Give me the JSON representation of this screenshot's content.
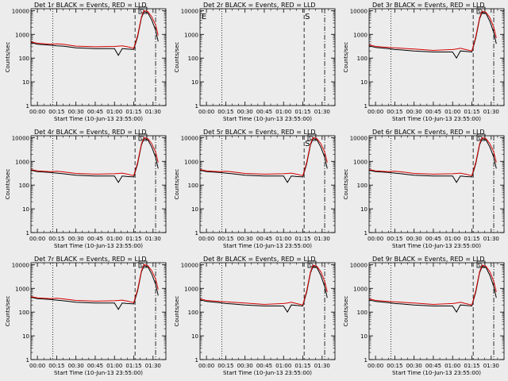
{
  "colors": {
    "background": "#ececec",
    "events": "#000000",
    "lld": "#d40000",
    "frame": "#000000"
  },
  "common": {
    "ylabel": "Counts/sec",
    "xlabel": "Start Time (10-Jun-13 23:55:00)",
    "x_ticks": [
      "00:00",
      "00:15",
      "00:30",
      "00:45",
      "01:00",
      "01:15",
      "01:30"
    ],
    "y_ticks": [
      "1",
      "10",
      "100",
      "1000",
      "10000"
    ],
    "y_scale": "log",
    "x_range_minutes": [
      -5,
      100
    ],
    "y_range": [
      1,
      12000
    ],
    "legend_text": "BLACK = Events, RED = LLD",
    "marker_label_E": "E",
    "marker_label_S": "S",
    "marker_label_D": "D"
  },
  "chart_data": [
    {
      "id": "1r",
      "title": "Det 1r BLACK = Events, RED = LLD",
      "type": "line",
      "x_minutes": [
        -5,
        0,
        10,
        15,
        20,
        30,
        45,
        60,
        63,
        66,
        70,
        75,
        78,
        81,
        83,
        86,
        89,
        92,
        94
      ],
      "series": [
        {
          "name": "Events",
          "values": [
            450,
            380,
            350,
            330,
            320,
            270,
            250,
            250,
            130,
            250,
            240,
            230,
            800,
            5000,
            9000,
            8000,
            4000,
            1500,
            500
          ]
        },
        {
          "name": "LLD",
          "values": [
            480,
            420,
            380,
            400,
            380,
            320,
            300,
            310,
            320,
            330,
            300,
            260,
            900,
            5500,
            10000,
            9000,
            5500,
            2500,
            900
          ]
        }
      ],
      "flags": {
        "E": false,
        "S": false,
        "D": true,
        "gap": false
      }
    },
    {
      "id": "2r",
      "title": "Det 2r BLACK = Events, RED = LLD",
      "type": "line",
      "x_minutes": [],
      "series": [],
      "flags": {
        "E": true,
        "S": true,
        "D": false,
        "gap": true
      }
    },
    {
      "id": "3r",
      "title": "Det 3r BLACK = Events, RED = LLD",
      "type": "line",
      "x_minutes": [
        -5,
        0,
        10,
        15,
        20,
        30,
        45,
        60,
        63,
        66,
        70,
        75,
        78,
        81,
        83,
        86,
        89,
        92,
        94
      ],
      "series": [
        {
          "name": "Events",
          "values": [
            330,
            280,
            250,
            230,
            220,
            200,
            180,
            180,
            100,
            200,
            190,
            180,
            700,
            4500,
            8500,
            7500,
            3500,
            1200,
            400
          ]
        },
        {
          "name": "LLD",
          "values": [
            360,
            310,
            280,
            270,
            260,
            240,
            210,
            230,
            240,
            260,
            230,
            200,
            800,
            5000,
            9500,
            8500,
            5000,
            2000,
            700
          ]
        }
      ],
      "flags": {
        "E": false,
        "S": false,
        "D": true,
        "gap": false
      }
    },
    {
      "id": "4r",
      "title": "Det 4r BLACK = Events, RED = LLD",
      "type": "line",
      "x_minutes": [
        -5,
        0,
        10,
        15,
        20,
        30,
        45,
        60,
        63,
        66,
        70,
        75,
        78,
        81,
        83,
        86,
        89,
        92,
        94
      ],
      "series": [
        {
          "name": "Events",
          "values": [
            420,
            370,
            340,
            320,
            300,
            260,
            240,
            240,
            130,
            240,
            230,
            220,
            800,
            5000,
            9000,
            8000,
            4000,
            1500,
            500
          ]
        },
        {
          "name": "LLD",
          "values": [
            450,
            400,
            370,
            380,
            360,
            310,
            290,
            300,
            310,
            320,
            290,
            250,
            900,
            5500,
            10000,
            9000,
            5500,
            2500,
            900
          ]
        }
      ],
      "flags": {
        "E": false,
        "S": false,
        "D": true,
        "gap": false
      }
    },
    {
      "id": "5r",
      "title": "Det 5r BLACK = Events, RED = LLD",
      "type": "line",
      "x_minutes": [
        -5,
        0,
        10,
        15,
        20,
        30,
        45,
        60,
        63,
        66,
        70,
        75,
        78,
        81,
        83,
        86,
        89,
        92,
        94
      ],
      "series": [
        {
          "name": "Events",
          "values": [
            420,
            370,
            340,
            320,
            300,
            260,
            240,
            240,
            130,
            240,
            230,
            220,
            800,
            5000,
            9000,
            8000,
            4000,
            1500,
            500
          ]
        },
        {
          "name": "LLD",
          "values": [
            450,
            400,
            370,
            380,
            360,
            310,
            290,
            300,
            310,
            320,
            290,
            250,
            900,
            5500,
            10000,
            9000,
            5500,
            2500,
            900
          ]
        }
      ],
      "flags": {
        "E": false,
        "S": true,
        "D": true,
        "gap": false
      }
    },
    {
      "id": "6r",
      "title": "Det 6r BLACK = Events, RED = LLD",
      "type": "line",
      "x_minutes": [
        -5,
        0,
        10,
        15,
        20,
        30,
        45,
        60,
        63,
        66,
        70,
        75,
        78,
        81,
        83,
        86,
        89,
        92,
        94
      ],
      "series": [
        {
          "name": "Events",
          "values": [
            420,
            370,
            340,
            320,
            300,
            260,
            240,
            240,
            130,
            240,
            230,
            220,
            800,
            5000,
            9000,
            8000,
            4000,
            1500,
            500
          ]
        },
        {
          "name": "LLD",
          "values": [
            450,
            400,
            370,
            380,
            360,
            310,
            290,
            300,
            310,
            320,
            290,
            250,
            900,
            5500,
            10000,
            9000,
            5500,
            2500,
            900
          ]
        }
      ],
      "flags": {
        "E": false,
        "S": false,
        "D": true,
        "gap": false
      }
    },
    {
      "id": "7r",
      "title": "Det 7r BLACK = Events, RED = LLD",
      "type": "line",
      "x_minutes": [
        -5,
        0,
        10,
        15,
        20,
        30,
        45,
        60,
        63,
        66,
        70,
        75,
        78,
        81,
        83,
        86,
        89,
        92,
        94
      ],
      "series": [
        {
          "name": "Events",
          "values": [
            420,
            370,
            340,
            320,
            300,
            260,
            240,
            240,
            130,
            240,
            230,
            220,
            800,
            5000,
            9000,
            8000,
            4000,
            1500,
            500
          ]
        },
        {
          "name": "LLD",
          "values": [
            450,
            400,
            370,
            380,
            360,
            310,
            290,
            300,
            310,
            320,
            290,
            250,
            900,
            5500,
            10000,
            9000,
            5500,
            2500,
            900
          ]
        }
      ],
      "flags": {
        "E": false,
        "S": false,
        "D": true,
        "gap": false
      }
    },
    {
      "id": "8r",
      "title": "Det 8r BLACK = Events, RED = LLD",
      "type": "line",
      "x_minutes": [
        -5,
        0,
        10,
        15,
        20,
        30,
        45,
        60,
        63,
        66,
        70,
        75,
        78,
        81,
        83,
        86,
        89,
        92,
        94
      ],
      "series": [
        {
          "name": "Events",
          "values": [
            330,
            280,
            250,
            230,
            220,
            200,
            180,
            180,
            100,
            200,
            190,
            180,
            700,
            4500,
            8500,
            7500,
            3500,
            1200,
            400
          ]
        },
        {
          "name": "LLD",
          "values": [
            360,
            310,
            280,
            270,
            260,
            240,
            210,
            230,
            240,
            260,
            230,
            200,
            800,
            5000,
            9500,
            8500,
            5000,
            2000,
            700
          ]
        }
      ],
      "flags": {
        "E": false,
        "S": false,
        "D": true,
        "gap": false
      }
    },
    {
      "id": "9r",
      "title": "Det 9r BLACK = Events, RED = LLD",
      "type": "line",
      "x_minutes": [
        -5,
        0,
        10,
        15,
        20,
        30,
        45,
        60,
        63,
        66,
        70,
        75,
        78,
        81,
        83,
        86,
        89,
        92,
        94
      ],
      "series": [
        {
          "name": "Events",
          "values": [
            330,
            280,
            250,
            230,
            220,
            200,
            180,
            180,
            100,
            200,
            190,
            180,
            700,
            4500,
            8500,
            7500,
            3500,
            1200,
            400
          ]
        },
        {
          "name": "LLD",
          "values": [
            360,
            310,
            280,
            270,
            260,
            240,
            210,
            230,
            240,
            260,
            230,
            200,
            800,
            5000,
            9500,
            8500,
            5000,
            2000,
            700
          ]
        }
      ],
      "flags": {
        "E": false,
        "S": false,
        "D": true,
        "gap": false
      }
    }
  ]
}
